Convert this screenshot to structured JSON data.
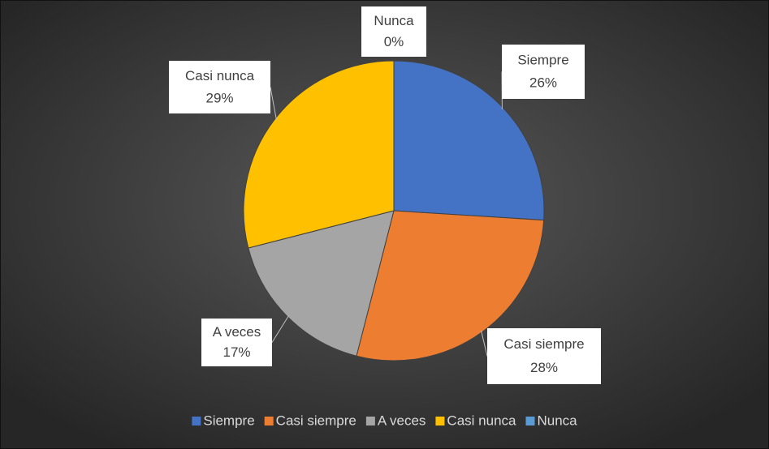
{
  "chart_data": {
    "type": "pie",
    "categories": [
      "Siempre",
      "Casi siempre",
      "A veces",
      "Casi nunca",
      "Nunca"
    ],
    "values": [
      26,
      28,
      17,
      29,
      0
    ],
    "value_labels": [
      "26%",
      "28%",
      "17%",
      "29%",
      "0%"
    ],
    "colors": [
      "#4472c4",
      "#ed7d31",
      "#a5a5a5",
      "#ffc000",
      "#5b9bd5"
    ],
    "legend": "bottom"
  }
}
